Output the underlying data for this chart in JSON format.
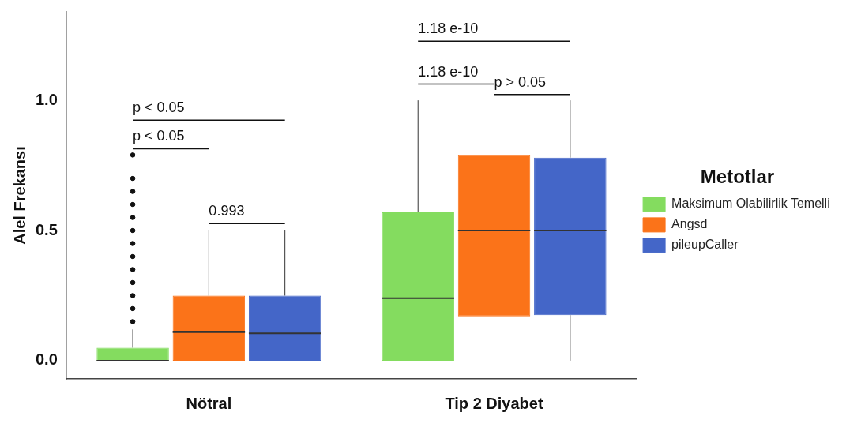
{
  "chart_data": {
    "type": "box",
    "ylabel": "Alel Frekansı",
    "legend_title": "Metotlar",
    "legend": "right",
    "grid": false,
    "categories": [
      "Nötral",
      "Tip 2 Diyabet"
    ],
    "ylim": [
      -0.07,
      1.34
    ],
    "yticks": [
      {
        "value": 0,
        "label": "0.0"
      },
      {
        "value": 0.5,
        "label": "0.5"
      },
      {
        "value": 1,
        "label": "1.0"
      }
    ],
    "series": [
      {
        "name": "Maksimum Olabilirlik Temelli",
        "color": "#84dc5f",
        "boxes": [
          {
            "low": 0,
            "q1": 0,
            "median": 0,
            "q3": 0.05,
            "high": 0.12,
            "outliers": [
              0.15,
              0.2,
              0.25,
              0.3,
              0.35,
              0.4,
              0.45,
              0.5,
              0.55,
              0.6,
              0.65,
              0.7,
              0.79
            ]
          },
          {
            "low": 0,
            "q1": 0,
            "median": 0.24,
            "q3": 0.57,
            "high": 1.0
          }
        ]
      },
      {
        "name": "Angsd",
        "color": "#fb7319",
        "boxes": [
          {
            "low": 0,
            "q1": 0,
            "median": 0.11,
            "q3": 0.25,
            "high": 0.5
          },
          {
            "low": 0,
            "q1": 0.17,
            "median": 0.5,
            "q3": 0.79,
            "high": 1.0
          }
        ]
      },
      {
        "name": "pileupCaller",
        "color": "#4466c8",
        "boxes": [
          {
            "low": 0,
            "q1": 0,
            "median": 0.105,
            "q3": 0.25,
            "high": 0.5
          },
          {
            "low": 0,
            "q1": 0.175,
            "median": 0.5,
            "q3": 0.78,
            "high": 1.0
          }
        ]
      }
    ],
    "annotations": [
      "p < 0.05",
      "p < 0.05",
      "0.993",
      "1.18 e-10",
      "1.18 e-10",
      "p > 0.05"
    ]
  }
}
